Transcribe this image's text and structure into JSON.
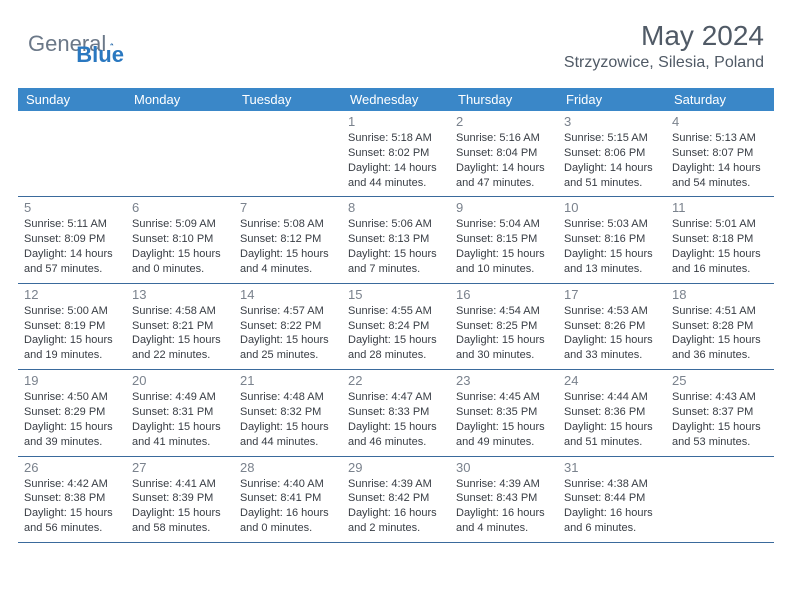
{
  "logo": {
    "text1": "General",
    "text2": "Blue"
  },
  "title": {
    "month": "May 2024",
    "location": "Strzyzowice, Silesia, Poland"
  },
  "colors": {
    "header_bar": "#3a87c8",
    "header_text": "#ffffff",
    "daynum": "#7a828d",
    "body_text": "#383d44",
    "rule": "#3a6a9c",
    "logo_gray": "#6b7888",
    "logo_blue": "#2a78c0"
  },
  "days_of_week": [
    "Sunday",
    "Monday",
    "Tuesday",
    "Wednesday",
    "Thursday",
    "Friday",
    "Saturday"
  ],
  "weeks": [
    [
      {
        "n": "",
        "sr": "",
        "ss": "",
        "dl": ""
      },
      {
        "n": "",
        "sr": "",
        "ss": "",
        "dl": ""
      },
      {
        "n": "",
        "sr": "",
        "ss": "",
        "dl": ""
      },
      {
        "n": "1",
        "sr": "5:18 AM",
        "ss": "8:02 PM",
        "dl": "14 hours and 44 minutes."
      },
      {
        "n": "2",
        "sr": "5:16 AM",
        "ss": "8:04 PM",
        "dl": "14 hours and 47 minutes."
      },
      {
        "n": "3",
        "sr": "5:15 AM",
        "ss": "8:06 PM",
        "dl": "14 hours and 51 minutes."
      },
      {
        "n": "4",
        "sr": "5:13 AM",
        "ss": "8:07 PM",
        "dl": "14 hours and 54 minutes."
      }
    ],
    [
      {
        "n": "5",
        "sr": "5:11 AM",
        "ss": "8:09 PM",
        "dl": "14 hours and 57 minutes."
      },
      {
        "n": "6",
        "sr": "5:09 AM",
        "ss": "8:10 PM",
        "dl": "15 hours and 0 minutes."
      },
      {
        "n": "7",
        "sr": "5:08 AM",
        "ss": "8:12 PM",
        "dl": "15 hours and 4 minutes."
      },
      {
        "n": "8",
        "sr": "5:06 AM",
        "ss": "8:13 PM",
        "dl": "15 hours and 7 minutes."
      },
      {
        "n": "9",
        "sr": "5:04 AM",
        "ss": "8:15 PM",
        "dl": "15 hours and 10 minutes."
      },
      {
        "n": "10",
        "sr": "5:03 AM",
        "ss": "8:16 PM",
        "dl": "15 hours and 13 minutes."
      },
      {
        "n": "11",
        "sr": "5:01 AM",
        "ss": "8:18 PM",
        "dl": "15 hours and 16 minutes."
      }
    ],
    [
      {
        "n": "12",
        "sr": "5:00 AM",
        "ss": "8:19 PM",
        "dl": "15 hours and 19 minutes."
      },
      {
        "n": "13",
        "sr": "4:58 AM",
        "ss": "8:21 PM",
        "dl": "15 hours and 22 minutes."
      },
      {
        "n": "14",
        "sr": "4:57 AM",
        "ss": "8:22 PM",
        "dl": "15 hours and 25 minutes."
      },
      {
        "n": "15",
        "sr": "4:55 AM",
        "ss": "8:24 PM",
        "dl": "15 hours and 28 minutes."
      },
      {
        "n": "16",
        "sr": "4:54 AM",
        "ss": "8:25 PM",
        "dl": "15 hours and 30 minutes."
      },
      {
        "n": "17",
        "sr": "4:53 AM",
        "ss": "8:26 PM",
        "dl": "15 hours and 33 minutes."
      },
      {
        "n": "18",
        "sr": "4:51 AM",
        "ss": "8:28 PM",
        "dl": "15 hours and 36 minutes."
      }
    ],
    [
      {
        "n": "19",
        "sr": "4:50 AM",
        "ss": "8:29 PM",
        "dl": "15 hours and 39 minutes."
      },
      {
        "n": "20",
        "sr": "4:49 AM",
        "ss": "8:31 PM",
        "dl": "15 hours and 41 minutes."
      },
      {
        "n": "21",
        "sr": "4:48 AM",
        "ss": "8:32 PM",
        "dl": "15 hours and 44 minutes."
      },
      {
        "n": "22",
        "sr": "4:47 AM",
        "ss": "8:33 PM",
        "dl": "15 hours and 46 minutes."
      },
      {
        "n": "23",
        "sr": "4:45 AM",
        "ss": "8:35 PM",
        "dl": "15 hours and 49 minutes."
      },
      {
        "n": "24",
        "sr": "4:44 AM",
        "ss": "8:36 PM",
        "dl": "15 hours and 51 minutes."
      },
      {
        "n": "25",
        "sr": "4:43 AM",
        "ss": "8:37 PM",
        "dl": "15 hours and 53 minutes."
      }
    ],
    [
      {
        "n": "26",
        "sr": "4:42 AM",
        "ss": "8:38 PM",
        "dl": "15 hours and 56 minutes."
      },
      {
        "n": "27",
        "sr": "4:41 AM",
        "ss": "8:39 PM",
        "dl": "15 hours and 58 minutes."
      },
      {
        "n": "28",
        "sr": "4:40 AM",
        "ss": "8:41 PM",
        "dl": "16 hours and 0 minutes."
      },
      {
        "n": "29",
        "sr": "4:39 AM",
        "ss": "8:42 PM",
        "dl": "16 hours and 2 minutes."
      },
      {
        "n": "30",
        "sr": "4:39 AM",
        "ss": "8:43 PM",
        "dl": "16 hours and 4 minutes."
      },
      {
        "n": "31",
        "sr": "4:38 AM",
        "ss": "8:44 PM",
        "dl": "16 hours and 6 minutes."
      },
      {
        "n": "",
        "sr": "",
        "ss": "",
        "dl": ""
      }
    ]
  ],
  "labels": {
    "sunrise": "Sunrise: ",
    "sunset": "Sunset: ",
    "daylight": "Daylight: "
  }
}
